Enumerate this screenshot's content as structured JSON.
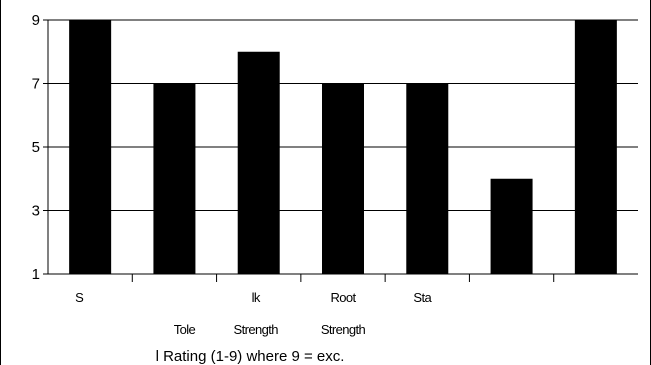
{
  "chart_data": {
    "type": "bar",
    "categories": [
      "S",
      "",
      "",
      "",
      "",
      "",
      ""
    ],
    "category_labels": [
      [
        "S"
      ],
      [
        "",
        "Tole"
      ],
      [
        "lk",
        "Strength"
      ],
      [
        "Root",
        "Strength"
      ],
      [
        "Sta"
      ],
      [
        ""
      ],
      [
        ""
      ]
    ],
    "values": [
      9,
      7,
      8,
      7,
      7,
      4,
      9
    ],
    "ylim": [
      1,
      9
    ],
    "yticks": [
      "1",
      "3",
      "5",
      "7",
      "9"
    ],
    "ytick_values": [
      1,
      3,
      5,
      7,
      9
    ],
    "xlabel": "l Rating (1-9) where 9 = exc.",
    "ylabel": "",
    "title": "",
    "grid": true,
    "legend": "none",
    "bar_color": "#000000"
  }
}
